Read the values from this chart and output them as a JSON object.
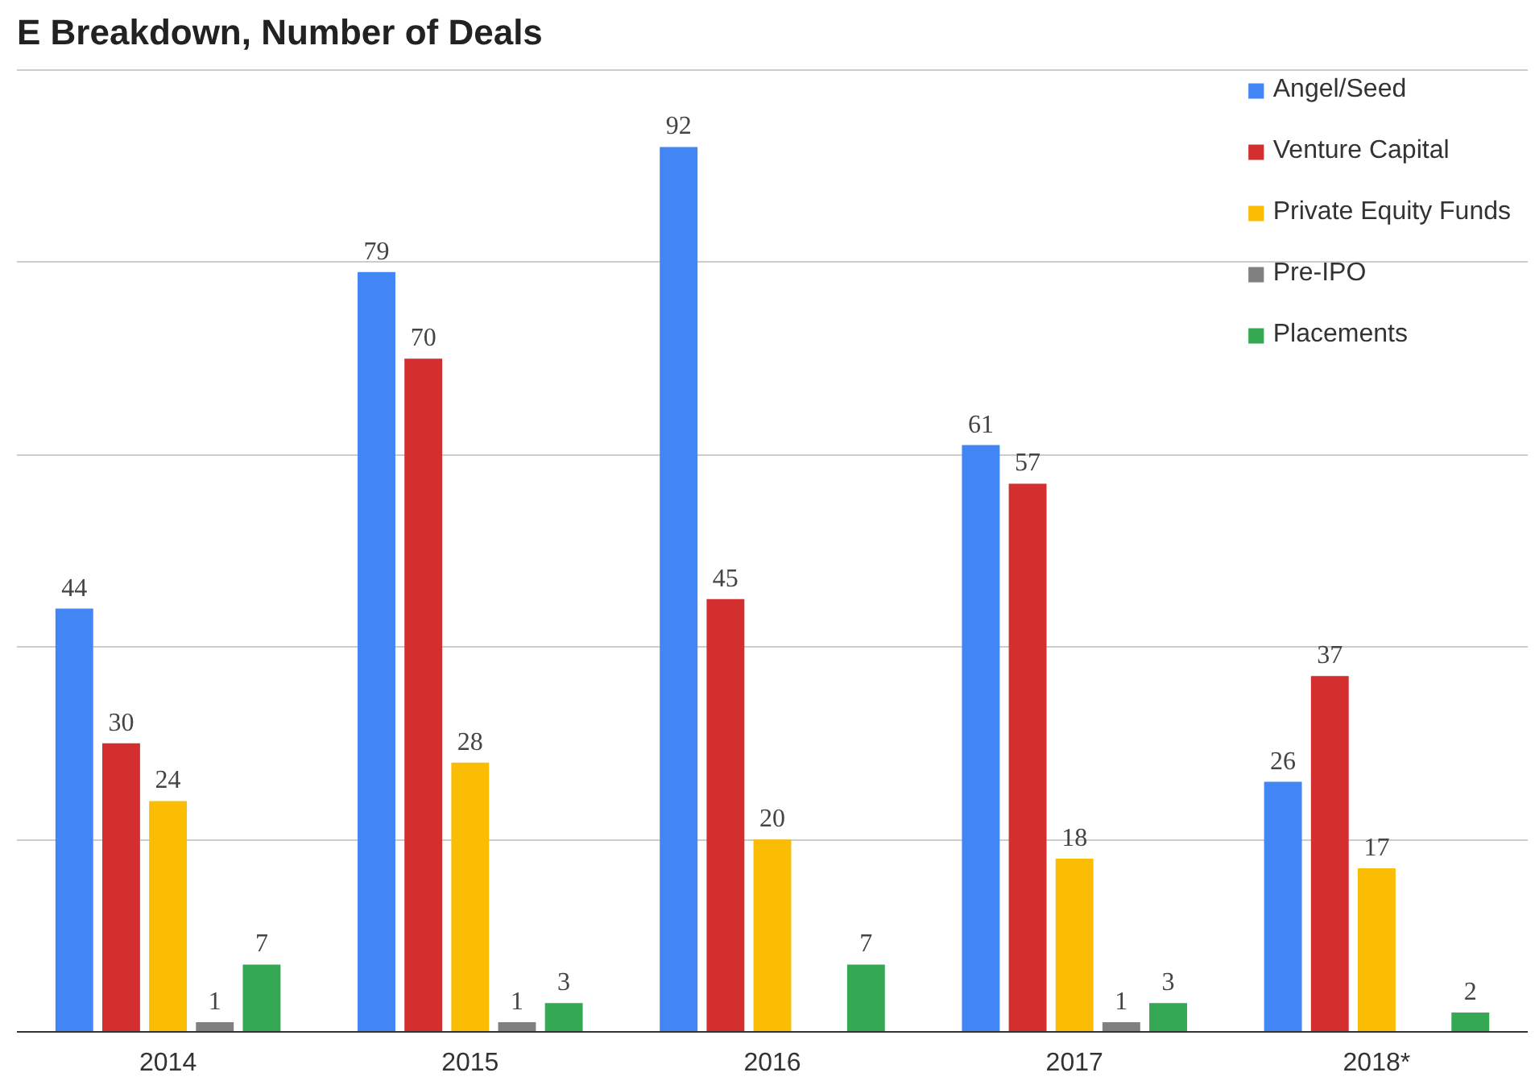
{
  "chart_data": {
    "type": "bar",
    "title": "E Breakdown, Number of Deals",
    "categories": [
      "2014",
      "2015",
      "2016",
      "2017",
      "2018*"
    ],
    "series": [
      {
        "name": "Angel/Seed",
        "color": "#4285f4",
        "values": [
          44,
          79,
          92,
          61,
          26
        ]
      },
      {
        "name": "Venture Capital",
        "color": "#d32f2f",
        "values": [
          30,
          70,
          45,
          57,
          37
        ]
      },
      {
        "name": "Private Equity Funds",
        "color": "#fbbc04",
        "values": [
          24,
          28,
          20,
          18,
          17
        ]
      },
      {
        "name": "Pre-IPO",
        "color": "#808080",
        "values": [
          1,
          1,
          null,
          1,
          null
        ]
      },
      {
        "name": "Placements",
        "color": "#34a853",
        "values": [
          7,
          3,
          7,
          3,
          2
        ]
      }
    ],
    "yticks": [
      {
        "value": 0,
        "label": null
      },
      {
        "value": 20,
        "label": null
      },
      {
        "value": 40,
        "label": null
      },
      {
        "value": 60,
        "label": null
      },
      {
        "value": 80,
        "label": null
      },
      {
        "value": 100,
        "label": null
      }
    ],
    "tick_labels": "x",
    "grid": "y",
    "legend": "top right",
    "data_labels": true
  }
}
